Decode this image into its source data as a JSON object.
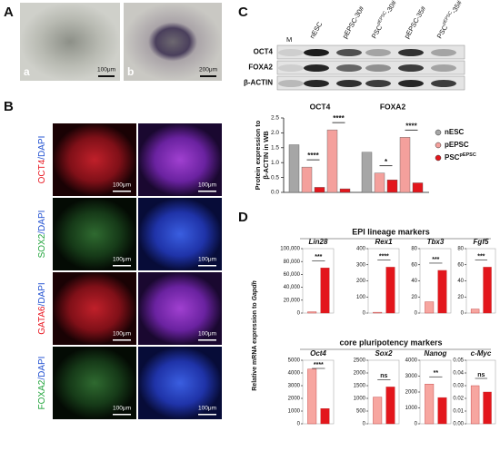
{
  "panel_labels": [
    "A",
    "B",
    "C",
    "D"
  ],
  "panel_a": {
    "images": [
      {
        "letter": "a",
        "scale_bar": "100μm"
      },
      {
        "letter": "b",
        "scale_bar": "200μm"
      }
    ]
  },
  "panel_b": {
    "counterstain": "/DAPI",
    "scale_bar": "100μm",
    "rows": [
      {
        "marker": "OCT4",
        "color": "#e8141e"
      },
      {
        "marker": "SOX2",
        "color": "#1fa33a"
      },
      {
        "marker": "GATA6",
        "color": "#e8141e"
      },
      {
        "marker": "FOXA2",
        "color": "#1fa33a"
      }
    ]
  },
  "panel_c": {
    "blot": {
      "lanes": [
        {
          "name": "M"
        },
        {
          "name": "nESC"
        },
        {
          "name": "pEPSC-30#"
        },
        {
          "name": "PSC",
          "sup": "pEPSC",
          "suffix": "-30#"
        },
        {
          "name": "pEPSC-35#"
        },
        {
          "name": "PSC",
          "sup": "pEPSC",
          "suffix": "-35#"
        }
      ],
      "rows": [
        "OCT4",
        "FOXA2",
        "β-ACTIN"
      ]
    }
  },
  "panel_d": {
    "y_label": {
      "text": "Relative mRNA expression to ",
      "italic": "Gapdh"
    },
    "sections": [
      "EPI lineage markers",
      "core pluripotency markers"
    ]
  },
  "chart_data": [
    {
      "type": "grouped-bar",
      "categories": [
        "OCT4",
        "FOXA2"
      ],
      "y_label": [
        "Protein expression to",
        "β-ACTIN in WB"
      ],
      "ylim": [
        0,
        2.5
      ],
      "yticks": [
        {
          "value": 0,
          "label": "0.0"
        },
        0.5,
        {
          "value": 1,
          "label": "1.0"
        },
        1.5,
        {
          "value": 2,
          "label": "2.0"
        },
        2.5
      ],
      "series": [
        {
          "name": "nESC",
          "color": "#a6a6a6",
          "values": [
            1.6,
            1.35
          ]
        },
        {
          "name": "pEPSC",
          "color": "#f4a09c",
          "values": [
            0.85,
            0.65
          ]
        },
        {
          "name": {
            "base": "PSC",
            "sup": "pEPSC"
          },
          "color": "#e3161c",
          "values": [
            0.17,
            0.42
          ]
        },
        {
          "name": "pEPSC",
          "color": "#f4a09c",
          "values": [
            2.1,
            1.85
          ]
        },
        {
          "name": {
            "base": "PSC",
            "sup": "pEPSC"
          },
          "color": "#e3161c",
          "values": [
            0.12,
            0.32
          ]
        }
      ],
      "annotations": [
        [
          "****",
          "****"
        ],
        [
          "*",
          "****"
        ]
      ]
    },
    {
      "type": "bar",
      "title": "Lin28",
      "colors": [
        "#f7a6a0",
        "#e3161c"
      ],
      "values": [
        2000,
        70000
      ],
      "ylim": [
        0,
        100000
      ],
      "yticks": [
        0,
        {
          "value": 20000,
          "label": "20,000"
        },
        {
          "value": 40000,
          "label": "40,000"
        },
        {
          "value": 60000,
          "label": "60,000"
        },
        {
          "value": 80000,
          "label": "80,000"
        },
        {
          "value": 100000,
          "label": "100,000"
        }
      ],
      "annotation": "***"
    },
    {
      "type": "bar",
      "title": "Rex1",
      "colors": [
        "#f7a6a0",
        "#e3161c"
      ],
      "values": [
        5,
        285
      ],
      "ylim": [
        0,
        400
      ],
      "yticks": [
        0,
        100,
        200,
        300,
        400
      ],
      "annotation": "****"
    },
    {
      "type": "bar",
      "title": "Tbx3",
      "colors": [
        "#f7a6a0",
        "#e3161c"
      ],
      "values": [
        14,
        53
      ],
      "ylim": [
        0,
        80
      ],
      "yticks": [
        0,
        20,
        40,
        60,
        80
      ],
      "annotation": "***"
    },
    {
      "type": "bar",
      "title": "Fgf5",
      "colors": [
        "#f7a6a0",
        "#e3161c"
      ],
      "values": [
        5,
        57
      ],
      "ylim": [
        0,
        80
      ],
      "yticks": [
        0,
        20,
        40,
        60,
        80
      ],
      "annotation": "***"
    },
    {
      "type": "bar",
      "title": "Oct4",
      "colors": [
        "#f7a6a0",
        "#e3161c"
      ],
      "values": [
        4300,
        1200
      ],
      "ylim": [
        0,
        5000
      ],
      "yticks": [
        0,
        1000,
        2000,
        3000,
        4000,
        5000
      ],
      "annotation": "****"
    },
    {
      "type": "bar",
      "title": "Sox2",
      "colors": [
        "#f7a6a0",
        "#e3161c"
      ],
      "values": [
        1050,
        1450
      ],
      "ylim": [
        0,
        2500
      ],
      "yticks": [
        0,
        500,
        1000,
        1500,
        2000,
        2500
      ],
      "annotation": "ns"
    },
    {
      "type": "bar",
      "title": "Nanog",
      "colors": [
        "#f7a6a0",
        "#e3161c"
      ],
      "values": [
        2500,
        1650
      ],
      "ylim": [
        0,
        4000
      ],
      "yticks": [
        0,
        1000,
        2000,
        3000,
        4000
      ],
      "annotation": "**"
    },
    {
      "type": "bar",
      "title": "c-Myc",
      "colors": [
        "#f7a6a0",
        "#e3161c"
      ],
      "values": [
        0.03,
        0.025
      ],
      "ylim": [
        0,
        0.05
      ],
      "yticks": [
        {
          "value": 0,
          "label": "0.00"
        },
        0.01,
        0.02,
        0.03,
        0.04,
        0.05
      ],
      "annotation": "ns"
    }
  ]
}
